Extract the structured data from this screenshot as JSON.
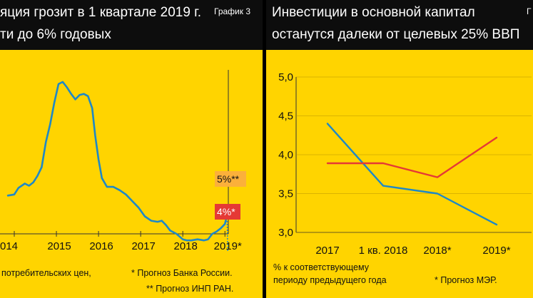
{
  "chart_data": [
    {
      "type": "line",
      "title_lines": [
        "яция грозит в 1 квартале 2019 г.",
        "ти до 6% годовых"
      ],
      "badge": "График 3",
      "x_ticks": [
        "014",
        "2015",
        "2016",
        "2017",
        "2018",
        "2019*"
      ],
      "xlim": [
        2014.0,
        2019.25
      ],
      "ylim": [
        3.0,
        18.0
      ],
      "series": [
        {
          "color": "#1e88c7",
          "points": [
            [
              2013.85,
              6.5
            ],
            [
              2014.0,
              6.6
            ],
            [
              2014.1,
              7.2
            ],
            [
              2014.25,
              7.6
            ],
            [
              2014.35,
              7.4
            ],
            [
              2014.45,
              7.7
            ],
            [
              2014.55,
              8.3
            ],
            [
              2014.65,
              9.1
            ],
            [
              2014.75,
              11.4
            ],
            [
              2014.85,
              13.0
            ],
            [
              2014.95,
              15.0
            ],
            [
              2015.05,
              16.7
            ],
            [
              2015.15,
              16.9
            ],
            [
              2015.25,
              16.4
            ],
            [
              2015.35,
              15.8
            ],
            [
              2015.45,
              15.3
            ],
            [
              2015.55,
              15.7
            ],
            [
              2015.65,
              15.8
            ],
            [
              2015.75,
              15.6
            ],
            [
              2015.85,
              14.5
            ],
            [
              2015.92,
              12.0
            ],
            [
              2016.0,
              9.8
            ],
            [
              2016.08,
              8.1
            ],
            [
              2016.2,
              7.3
            ],
            [
              2016.35,
              7.3
            ],
            [
              2016.5,
              7.0
            ],
            [
              2016.65,
              6.6
            ],
            [
              2016.8,
              6.0
            ],
            [
              2016.95,
              5.4
            ],
            [
              2017.1,
              4.6
            ],
            [
              2017.25,
              4.2
            ],
            [
              2017.4,
              4.1
            ],
            [
              2017.5,
              4.2
            ],
            [
              2017.6,
              3.8
            ],
            [
              2017.7,
              3.3
            ],
            [
              2017.85,
              3.0
            ],
            [
              2018.0,
              2.5
            ],
            [
              2018.1,
              2.4
            ],
            [
              2018.2,
              2.4
            ],
            [
              2018.35,
              2.5
            ],
            [
              2018.5,
              2.4
            ],
            [
              2018.6,
              2.5
            ],
            [
              2018.7,
              3.0
            ],
            [
              2018.8,
              3.2
            ],
            [
              2018.9,
              3.5
            ],
            [
              2019.0,
              3.9
            ],
            [
              2019.05,
              4.7
            ]
          ]
        }
      ],
      "forecasts": [
        {
          "label": "5%**",
          "value": 5.0,
          "bg": "#fbb03b",
          "fg": "#111111"
        },
        {
          "label": "4%*",
          "value": 4.0,
          "bg": "#e53935",
          "fg": "#ffffff"
        }
      ],
      "notes": [
        "потребительских цен,",
        "* Прогноз Банка России.",
        "** Прогноз ИНП РАН."
      ]
    },
    {
      "type": "line",
      "title_lines": [
        "Инвестиции в основной капитал",
        "останутся далеки от целевых 25% ВВП"
      ],
      "badge": "Г",
      "categories": [
        "2017",
        "1 кв. 2018",
        "2018*",
        "2019*"
      ],
      "y_ticks": [
        "5,0",
        "4,5",
        "4,0",
        "3,5",
        "3,0"
      ],
      "ylim": [
        3.0,
        5.0
      ],
      "series": [
        {
          "color": "#1e88c7",
          "values": [
            4.4,
            3.6,
            3.5,
            3.1
          ]
        },
        {
          "color": "#e53935",
          "values": [
            3.89,
            3.89,
            3.71,
            4.22
          ]
        }
      ],
      "notes": [
        "% к соответствующему",
        "периоду предыдущего года",
        "* Прогноз МЭР."
      ]
    }
  ]
}
